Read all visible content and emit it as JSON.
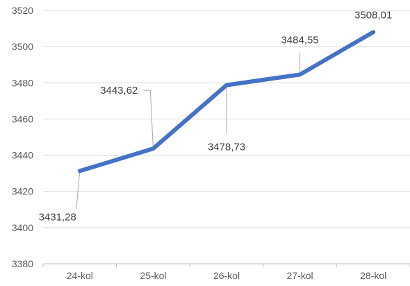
{
  "chart_data": {
    "type": "line",
    "categories": [
      "24-kol",
      "25-kol",
      "26-kol",
      "27-kol",
      "28-kol"
    ],
    "series": [
      {
        "values": [
          3431.28,
          3443.62,
          3478.73,
          3484.55,
          3508.01
        ]
      }
    ],
    "data_labels": [
      "3431,28",
      "3443,62",
      "3478,73",
      "3484,55",
      "3508,01"
    ],
    "y_ticks": [
      "3380",
      "3400",
      "3420",
      "3440",
      "3460",
      "3480",
      "3500",
      "3520"
    ],
    "ylim": [
      3380,
      3520
    ],
    "grid": true,
    "legend": "none",
    "colors": {
      "line": "#4472C4",
      "grid": "#d9d9d9",
      "leader": "#a6a6a6",
      "axis": "#bfbfbf"
    }
  }
}
